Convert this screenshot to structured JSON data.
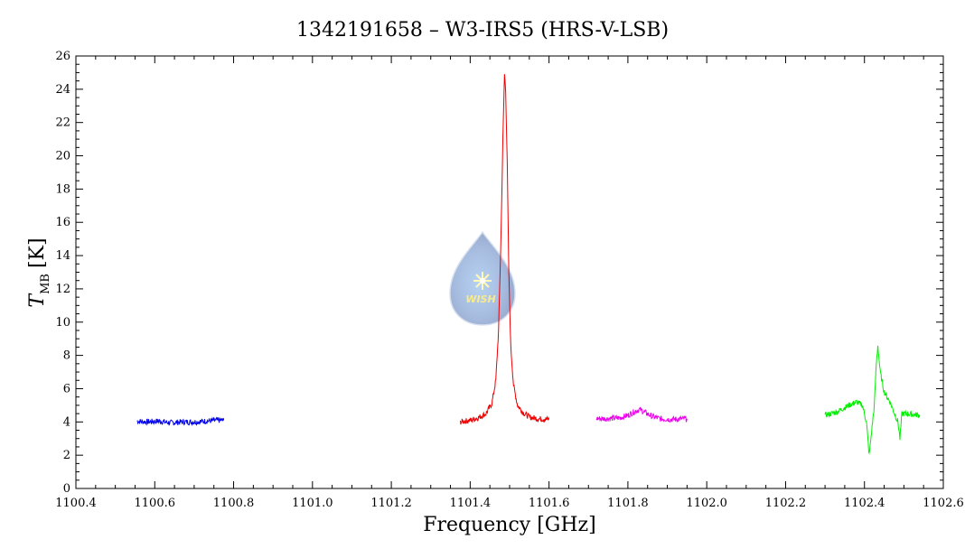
{
  "chart_data": {
    "type": "line",
    "title": "1342191658 – W3-IRS5 (HRS-V-LSB)",
    "xlabel": "Frequency [GHz]",
    "ylabel_main": "T",
    "ylabel_sub": "MB",
    "ylabel_unit": "[K]",
    "xlim": [
      1100.4,
      1102.6
    ],
    "ylim": [
      0,
      26
    ],
    "x_ticks": [
      "1100.4",
      "1100.6",
      "1100.8",
      "1101.0",
      "1101.2",
      "1101.4",
      "1101.6",
      "1101.8",
      "1102.0",
      "1102.2",
      "1102.4",
      "1102.6"
    ],
    "y_ticks": [
      "0",
      "2",
      "4",
      "6",
      "8",
      "10",
      "12",
      "14",
      "16",
      "18",
      "20",
      "22",
      "24",
      "26"
    ],
    "grid": false,
    "logo_text": "WISH",
    "series": [
      {
        "color": "#0000ee",
        "x": [
          1100.555,
          1100.58,
          1100.61,
          1100.64,
          1100.67,
          1100.7,
          1100.73,
          1100.76,
          1100.775
        ],
        "y": [
          4.05,
          4.0,
          4.05,
          3.95,
          4.0,
          4.0,
          4.05,
          4.1,
          4.1
        ]
      },
      {
        "color": "#ee0000",
        "x": [
          1101.375,
          1101.4,
          1101.42,
          1101.44,
          1101.455,
          1101.465,
          1101.472,
          1101.478,
          1101.483,
          1101.487,
          1101.49,
          1101.494,
          1101.498,
          1101.503,
          1101.51,
          1101.52,
          1101.535,
          1101.55,
          1101.57,
          1101.6
        ],
        "y": [
          4.0,
          4.1,
          4.25,
          4.5,
          5.1,
          6.5,
          9.5,
          15.0,
          21.0,
          24.9,
          24.0,
          19.5,
          13.0,
          8.5,
          6.2,
          5.0,
          4.55,
          4.3,
          4.2,
          4.15
        ]
      },
      {
        "color": "#ee00ee",
        "x": [
          1101.72,
          1101.75,
          1101.78,
          1101.8,
          1101.815,
          1101.83,
          1101.845,
          1101.86,
          1101.88,
          1101.91,
          1101.95
        ],
        "y": [
          4.2,
          4.2,
          4.25,
          4.4,
          4.6,
          4.75,
          4.55,
          4.35,
          4.2,
          4.15,
          4.2
        ]
      },
      {
        "color": "#00ee00",
        "x": [
          1102.3,
          1102.33,
          1102.36,
          1102.38,
          1102.395,
          1102.405,
          1102.412,
          1102.418,
          1102.425,
          1102.43,
          1102.434,
          1102.44,
          1102.45,
          1102.465,
          1102.478,
          1102.485,
          1102.49,
          1102.495,
          1102.51,
          1102.54
        ],
        "y": [
          4.4,
          4.6,
          5.0,
          5.2,
          5.0,
          4.0,
          2.0,
          3.4,
          5.0,
          7.5,
          8.6,
          7.0,
          5.8,
          5.2,
          4.4,
          4.0,
          3.0,
          4.5,
          4.5,
          4.4
        ]
      }
    ]
  }
}
